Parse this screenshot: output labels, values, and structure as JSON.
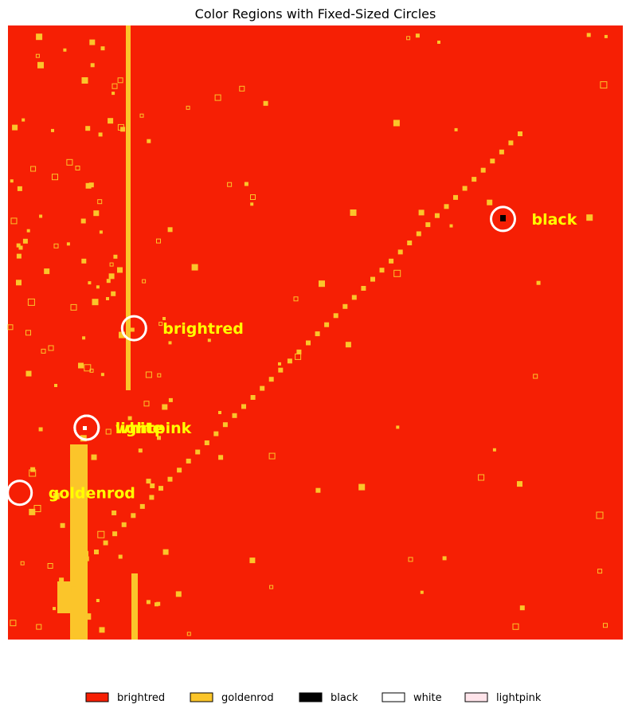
{
  "chart_data": {
    "type": "heatmap",
    "title": "Color Regions with Fixed-Sized Circles",
    "xlabel": "",
    "ylabel": "",
    "axes_visible": false,
    "grid": false,
    "background_color": "brightred",
    "colors": {
      "brightred": "#f61f04",
      "goldenrod": "#fbc52a",
      "black": "#000000",
      "white": "#ffffff",
      "lightpink": "#ffe4ea",
      "label": "#ffff00",
      "circle": "#ffffff"
    },
    "annotations": [
      {
        "label": "black",
        "x": 0.805,
        "y": 0.315
      },
      {
        "label": "brightred",
        "x": 0.205,
        "y": 0.493
      },
      {
        "label": "white",
        "x": 0.128,
        "y": 0.655
      },
      {
        "label": "lightpink",
        "x": 0.128,
        "y": 0.655
      },
      {
        "label": "goldenrod",
        "x": 0.019,
        "y": 0.761
      }
    ],
    "legend": {
      "placement": "bottom-center",
      "entries": [
        {
          "label": "brightred",
          "color": "#f61f04"
        },
        {
          "label": "goldenrod",
          "color": "#fbc52a"
        },
        {
          "label": "black",
          "color": "#000000"
        },
        {
          "label": "white",
          "color": "#ffffff"
        },
        {
          "label": "lightpink",
          "color": "#ffe4ea"
        }
      ]
    }
  }
}
